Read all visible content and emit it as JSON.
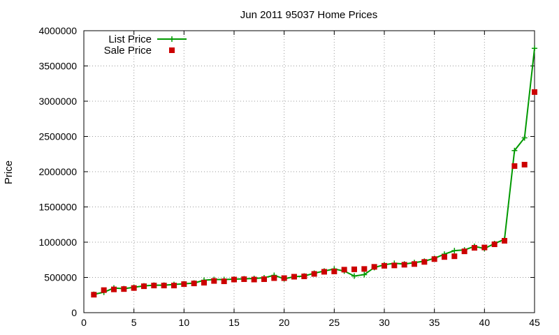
{
  "chart_data": {
    "type": "line",
    "title": "Jun 2011 95037 Home Prices",
    "xlabel": "",
    "ylabel": "Price",
    "xlim": [
      0,
      45
    ],
    "ylim": [
      0,
      4000000
    ],
    "xticks": [
      0,
      5,
      10,
      15,
      20,
      25,
      30,
      35,
      40,
      45
    ],
    "yticks": [
      0,
      500000,
      1000000,
      1500000,
      2000000,
      2500000,
      3000000,
      3500000,
      4000000
    ],
    "grid": true,
    "legend_position": "top-left",
    "x": [
      1,
      2,
      3,
      4,
      5,
      6,
      7,
      8,
      9,
      10,
      11,
      12,
      13,
      14,
      15,
      16,
      17,
      18,
      19,
      20,
      21,
      22,
      23,
      24,
      25,
      26,
      27,
      28,
      29,
      30,
      31,
      32,
      33,
      34,
      35,
      36,
      37,
      38,
      39,
      40,
      41,
      42,
      43,
      44,
      45
    ],
    "series": [
      {
        "name": "List Price",
        "style": "line-with-plus-markers",
        "color": "#009900",
        "values": [
          260000,
          290000,
          350000,
          340000,
          360000,
          380000,
          390000,
          390000,
          400000,
          410000,
          420000,
          460000,
          470000,
          470000,
          475000,
          480000,
          485000,
          495000,
          530000,
          480000,
          510000,
          520000,
          560000,
          590000,
          620000,
          590000,
          520000,
          540000,
          640000,
          680000,
          700000,
          690000,
          710000,
          730000,
          770000,
          830000,
          880000,
          890000,
          940000,
          910000,
          980000,
          1040000,
          2300000,
          2480000,
          3750000
        ]
      },
      {
        "name": "Sale Price",
        "style": "square-markers",
        "color": "#cc0000",
        "values": [
          255000,
          320000,
          330000,
          335000,
          350000,
          375000,
          385000,
          385000,
          385000,
          405000,
          415000,
          425000,
          450000,
          445000,
          470000,
          475000,
          470000,
          475000,
          490000,
          490000,
          510000,
          515000,
          550000,
          580000,
          585000,
          610000,
          615000,
          620000,
          650000,
          665000,
          670000,
          680000,
          690000,
          720000,
          760000,
          790000,
          800000,
          870000,
          920000,
          925000,
          970000,
          1020000,
          2080000,
          2100000,
          3130000
        ]
      }
    ]
  }
}
